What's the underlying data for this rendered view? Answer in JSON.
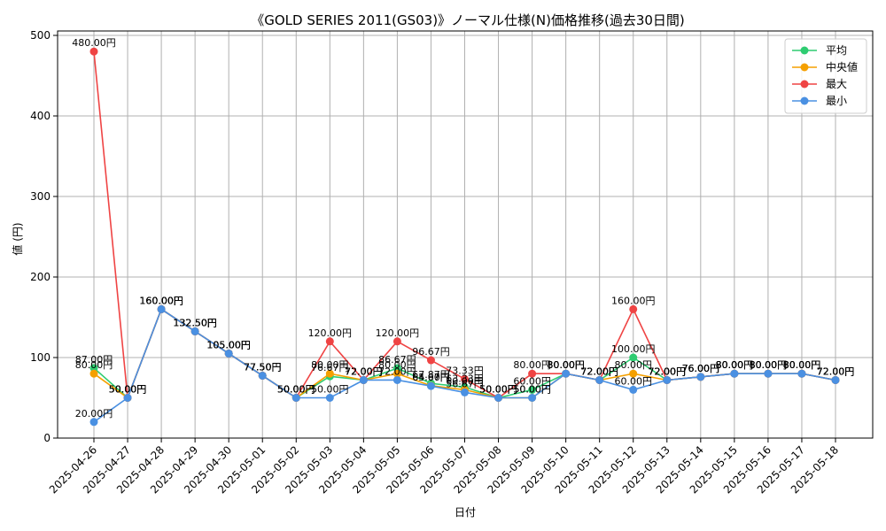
{
  "chart_data": {
    "type": "line",
    "title": "《GOLD SERIES 2011(GS03)》ノーマル仕様(N)価格推移(過去30日間)",
    "xlabel": "日付",
    "ylabel": "値 (円)",
    "ylim": [
      0,
      500
    ],
    "yticks": [
      0,
      100,
      200,
      300,
      400,
      500
    ],
    "grid": true,
    "legend_position": "top-right",
    "categories": [
      "2025-04-26",
      "2025-04-27",
      "2025-04-28",
      "2025-04-29",
      "2025-04-30",
      "2025-05-01",
      "2025-05-02",
      "2025-05-03",
      "2025-05-04",
      "2025-05-05",
      "2025-05-06",
      "2025-05-07",
      "2025-05-08",
      "2025-05-09",
      "2025-05-10",
      "2025-05-11",
      "2025-05-12",
      "2025-05-13",
      "2025-05-14",
      "2025-05-15",
      "2025-05-16",
      "2025-05-17",
      "2025-05-18"
    ],
    "series": [
      {
        "name": "平均",
        "color": "#2ecc71",
        "values": [
          87.0,
          50.0,
          160.0,
          132.5,
          105.0,
          77.5,
          50.0,
          76.67,
          72.0,
          86.67,
          67.87,
          63.33,
          50.0,
          60.0,
          80.0,
          72.0,
          100.0,
          72.0,
          76.0,
          80.0,
          80.0,
          80.0,
          72.0
        ]
      },
      {
        "name": "中央値",
        "color": "#f5a000",
        "values": [
          80.0,
          50.0,
          160.0,
          132.5,
          105.0,
          77.5,
          50.0,
          80.0,
          72.0,
          80.0,
          65.0,
          60.0,
          50.0,
          50.0,
          80.0,
          72.0,
          80.0,
          72.0,
          76.0,
          80.0,
          80.0,
          80.0,
          72.0
        ]
      },
      {
        "name": "最大",
        "color": "#ef4444",
        "values": [
          480.0,
          50.0,
          160.0,
          132.5,
          105.0,
          77.5,
          50.0,
          120.0,
          72.0,
          120.0,
          96.67,
          73.33,
          50.0,
          80.0,
          80.0,
          72.0,
          160.0,
          72.0,
          76.0,
          80.0,
          80.0,
          80.0,
          72.0
        ]
      },
      {
        "name": "最小",
        "color": "#4a90e2",
        "values": [
          20.0,
          50.0,
          160.0,
          132.5,
          105.0,
          77.5,
          50.0,
          50.0,
          72.0,
          72.0,
          64.67,
          56.67,
          50.0,
          50.0,
          80.0,
          72.0,
          60.0,
          72.0,
          76.0,
          80.0,
          80.0,
          80.0,
          72.0
        ]
      }
    ]
  }
}
